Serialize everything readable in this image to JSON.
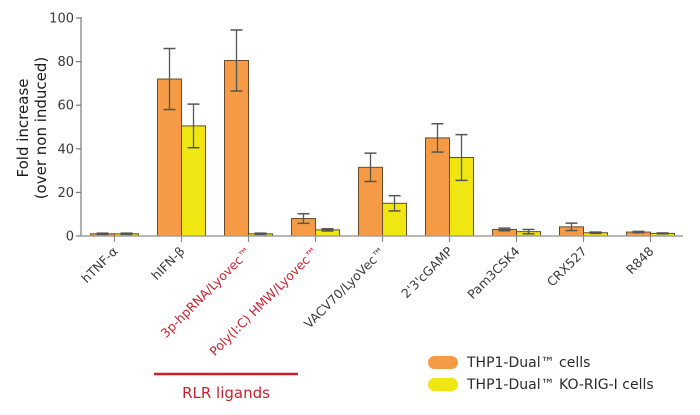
{
  "chart_data": {
    "type": "bar",
    "title": "",
    "xlabel": "",
    "ylabel": [
      "Fold increase",
      "(over non induced)"
    ],
    "ylim": [
      0,
      100
    ],
    "yticks": [
      0,
      20,
      40,
      60,
      80,
      100
    ],
    "grid": false,
    "legend_position": "bottom-right",
    "categories": [
      "hTNF-α",
      "hIFN-β",
      "3p-hpRNA/Lyovec™",
      "Poly(I:C) HMW/Lyovec™",
      "VACV70/LyoVec™",
      "2'3'cGAMP",
      "Pam3CSK4",
      "CRX527",
      "R848"
    ],
    "highlighted_categories": [
      "3p-hpRNA/Lyovec™",
      "Poly(I:C) HMW/Lyovec™"
    ],
    "series": [
      {
        "name": "THP1-Dual™ cells",
        "color": "#F59B45",
        "values": [
          1,
          72,
          80.5,
          8,
          31.5,
          45,
          3,
          4.2,
          1.8
        ],
        "error": [
          0.3,
          14,
          14,
          2.2,
          6.5,
          6.5,
          0.6,
          1.7,
          0.3
        ]
      },
      {
        "name": "THP1-Dual™ KO-RIG-I cells",
        "color": "#F0E612",
        "values": [
          1,
          50.5,
          1,
          2.8,
          15,
          36,
          2,
          1.5,
          1.2
        ],
        "error": [
          0.3,
          10,
          0.3,
          0.5,
          3.5,
          10.5,
          1,
          0.3,
          0.2
        ]
      }
    ],
    "annotations": [
      {
        "text": "RLR ligands",
        "spans": [
          "3p-hpRNA/Lyovec™",
          "Poly(I:C) HMW/Lyovec™"
        ],
        "color": "#C8202F"
      }
    ]
  }
}
